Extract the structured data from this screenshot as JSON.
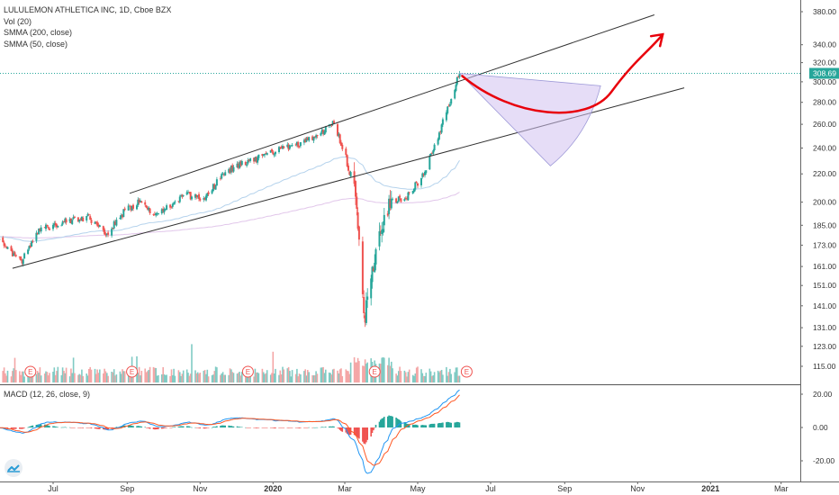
{
  "legend": {
    "title": "LULULEMON ATHLETICA INC, 1D, Cboe BZX",
    "vol": "Vol (20)",
    "smma200": "SMMA (200, close)",
    "smma50": "SMMA (50, close)",
    "macd": "MACD (12, 26, close, 9)"
  },
  "last_price": "308.69",
  "colors": {
    "up": "#26a69a",
    "down": "#ef5350",
    "up_vol": "#80cbc4",
    "down_vol": "#f4a6a6",
    "smma200": "#e1c6ea",
    "smma50": "#b4d2ec",
    "macd_line": "#2196f3",
    "signal_line": "#ff5722",
    "price_line": "#26a69a",
    "projection_arrow": "#e8000b",
    "projection_fill": "#d2c1f0"
  },
  "chart_data": {
    "type": "candlestick",
    "symbol": "LULULEMON ATHLETICA INC",
    "interval": "1D",
    "exchange": "Cboe BZX",
    "price_axis_labels": [
      "380.00",
      "340.00",
      "320.00",
      "300.00",
      "280.00",
      "260.00",
      "240.00",
      "220.00",
      "200.00",
      "185.00",
      "173.00",
      "161.00",
      "151.00",
      "141.00",
      "131.00",
      "123.00",
      "115.00"
    ],
    "price_axis_values": [
      380,
      340,
      320,
      300,
      280,
      260,
      240,
      220,
      200,
      185,
      173,
      161,
      151,
      141,
      131,
      123,
      115
    ],
    "price_scale": "log",
    "time_axis_labels": [
      "Jul",
      "Sep",
      "Nov",
      "2020",
      "Mar",
      "May",
      "Jul",
      "Sep",
      "Nov",
      "2021",
      "Mar"
    ],
    "macd_axis_labels": [
      "20.00",
      "0.00",
      "-20.00"
    ],
    "macd_axis_values": [
      20,
      0,
      -20
    ],
    "earnings_markers": [
      "E",
      "E",
      "E",
      "E",
      "E"
    ],
    "last_price": 308.69,
    "anchors": [
      {
        "date": "2019-05-15",
        "close": 176
      },
      {
        "date": "2019-06-05",
        "close": 164
      },
      {
        "date": "2019-06-20",
        "close": 182
      },
      {
        "date": "2019-07-10",
        "close": 187
      },
      {
        "date": "2019-07-30",
        "close": 190
      },
      {
        "date": "2019-08-15",
        "close": 180
      },
      {
        "date": "2019-08-30",
        "close": 194
      },
      {
        "date": "2019-09-10",
        "close": 200
      },
      {
        "date": "2019-09-25",
        "close": 192
      },
      {
        "date": "2019-10-20",
        "close": 205
      },
      {
        "date": "2019-11-05",
        "close": 202
      },
      {
        "date": "2019-11-20",
        "close": 220
      },
      {
        "date": "2019-12-05",
        "close": 228
      },
      {
        "date": "2019-12-20",
        "close": 232
      },
      {
        "date": "2020-01-10",
        "close": 240
      },
      {
        "date": "2020-02-05",
        "close": 248
      },
      {
        "date": "2020-02-21",
        "close": 262
      },
      {
        "date": "2020-03-02",
        "close": 232
      },
      {
        "date": "2020-03-09",
        "close": 205
      },
      {
        "date": "2020-03-17",
        "close": 135
      },
      {
        "date": "2020-03-26",
        "close": 165
      },
      {
        "date": "2020-04-08",
        "close": 200
      },
      {
        "date": "2020-04-22",
        "close": 204
      },
      {
        "date": "2020-05-05",
        "close": 218
      },
      {
        "date": "2020-05-15",
        "close": 240
      },
      {
        "date": "2020-05-28",
        "close": 280
      },
      {
        "date": "2020-06-05",
        "close": 308.69
      }
    ]
  }
}
